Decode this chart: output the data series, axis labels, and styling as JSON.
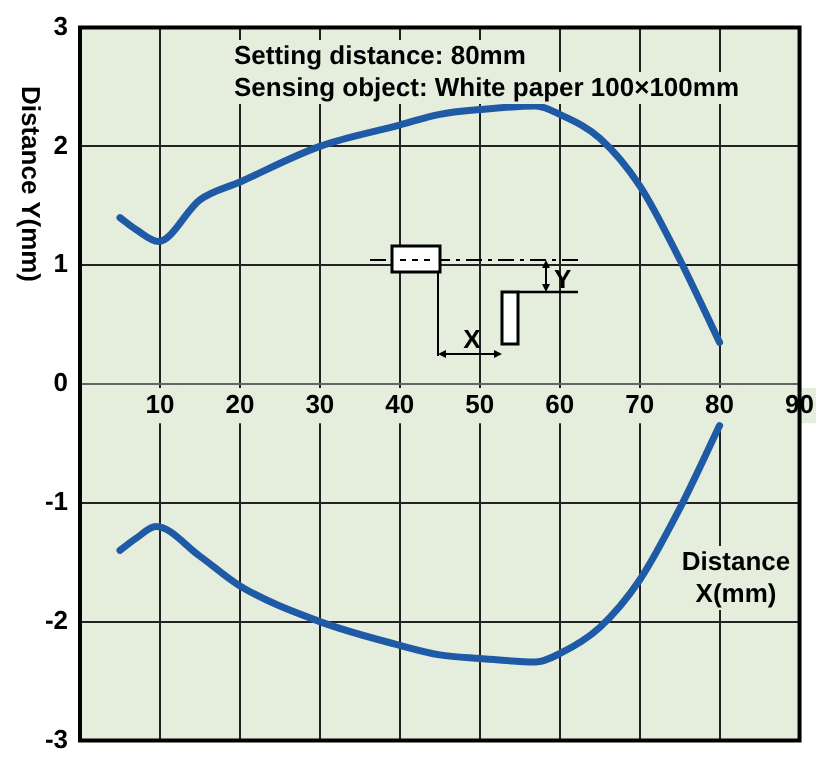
{
  "chart_data": {
    "type": "line",
    "xlabel": "Distance X(mm)",
    "ylabel": "Distance Y(mm)",
    "annotations": [
      "Setting distance: 80mm",
      "Sensing object: White paper 100×100mm",
      "X",
      "Y"
    ],
    "series": [
      {
        "color": "#1f5aa6",
        "x": [
          5,
          7,
          9.8,
          15,
          20,
          30,
          40,
          45,
          50,
          57,
          60,
          65,
          70,
          75,
          80
        ],
        "values": [
          1.4,
          1.3,
          1.2,
          1.55,
          1.7,
          2.0,
          2.18,
          2.27,
          2.31,
          2.34,
          2.27,
          2.07,
          1.67,
          1.05,
          0.35
        ]
      },
      {
        "color": "#1f5aa6",
        "x": [
          5,
          7,
          9.5,
          15,
          20,
          30,
          40,
          45,
          50,
          57,
          60,
          65,
          70,
          75,
          80
        ],
        "values": [
          -1.4,
          -1.3,
          -1.2,
          -1.45,
          -1.7,
          -2.0,
          -2.2,
          -2.28,
          -2.31,
          -2.34,
          -2.27,
          -2.05,
          -1.65,
          -1.05,
          -0.35
        ]
      }
    ],
    "xlim": [
      0,
      90
    ],
    "xticks": [
      10,
      20,
      30,
      40,
      50,
      60,
      70,
      80,
      90
    ],
    "ylim": [
      -3,
      3
    ],
    "yticks": [
      -3,
      -2,
      -1,
      0,
      1,
      2,
      3
    ],
    "grid": true,
    "legend": false,
    "marker": "none",
    "line_style": "solid"
  }
}
